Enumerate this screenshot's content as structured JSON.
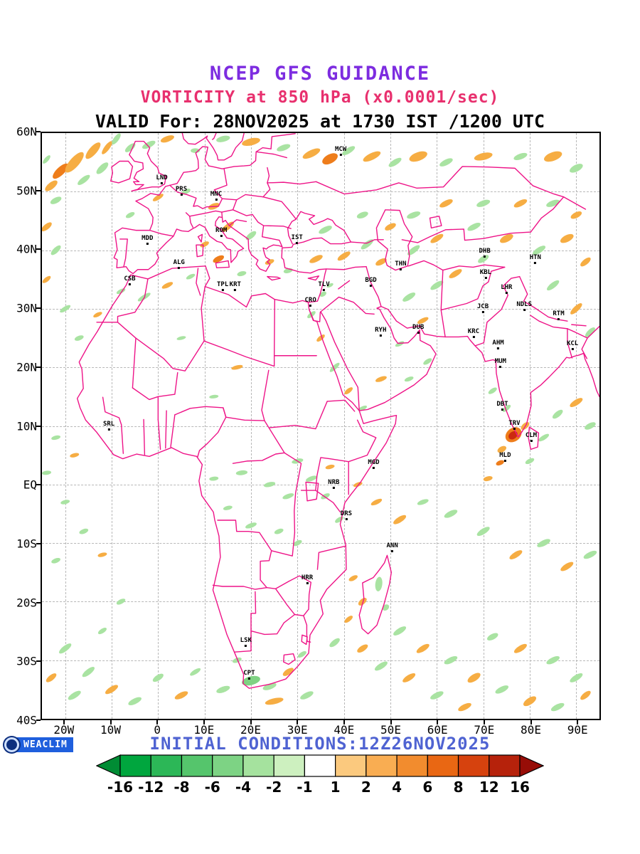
{
  "header": {
    "line1": "NCEP GFS GUIDANCE",
    "line2": "VORTICITY at 850 hPa (x0.0001/sec)",
    "line3": "VALID For: 28NOV2025 at 1730 IST /1200 UTC"
  },
  "footer": {
    "initial_conditions": "INITIAL CONDITIONS:12Z26NOV2025",
    "logo_text": "WEACLIM"
  },
  "axes": {
    "lat_ticks": [
      {
        "label": "60N",
        "lat": 60
      },
      {
        "label": "50N",
        "lat": 50
      },
      {
        "label": "40N",
        "lat": 40
      },
      {
        "label": "30N",
        "lat": 30
      },
      {
        "label": "20N",
        "lat": 20
      },
      {
        "label": "10N",
        "lat": 10
      },
      {
        "label": "EQ",
        "lat": 0
      },
      {
        "label": "10S",
        "lat": -10
      },
      {
        "label": "20S",
        "lat": -20
      },
      {
        "label": "30S",
        "lat": -30
      },
      {
        "label": "40S",
        "lat": -40
      }
    ],
    "lon_ticks": [
      {
        "label": "20W",
        "lon": -20
      },
      {
        "label": "10W",
        "lon": -10
      },
      {
        "label": "0",
        "lon": 0
      },
      {
        "label": "10E",
        "lon": 10
      },
      {
        "label": "20E",
        "lon": 20
      },
      {
        "label": "30E",
        "lon": 30
      },
      {
        "label": "40E",
        "lon": 40
      },
      {
        "label": "50E",
        "lon": 50
      },
      {
        "label": "60E",
        "lon": 60
      },
      {
        "label": "70E",
        "lon": 70
      },
      {
        "label": "80E",
        "lon": 80
      },
      {
        "label": "90E",
        "lon": 90
      }
    ]
  },
  "stations": [
    {
      "id": "MCW",
      "lon": 39.3,
      "lat": 56.1
    },
    {
      "id": "LND",
      "lon": 0.8,
      "lat": 51.3
    },
    {
      "id": "PRS",
      "lon": 5.0,
      "lat": 49.3
    },
    {
      "id": "MNC",
      "lon": 12.5,
      "lat": 48.4
    },
    {
      "id": "ROM",
      "lon": 13.6,
      "lat": 42.2
    },
    {
      "id": "IST",
      "lon": 29.9,
      "lat": 41.0
    },
    {
      "id": "MDD",
      "lon": -2.3,
      "lat": 40.9
    },
    {
      "id": "DHB",
      "lon": 70.3,
      "lat": 38.7
    },
    {
      "id": "HTN",
      "lon": 81.2,
      "lat": 37.6
    },
    {
      "id": "THN",
      "lon": 52.2,
      "lat": 36.5
    },
    {
      "id": "ALG",
      "lon": 4.5,
      "lat": 36.8
    },
    {
      "id": "KBL",
      "lon": 70.5,
      "lat": 35.1
    },
    {
      "id": "CSB",
      "lon": -6.1,
      "lat": 34.0
    },
    {
      "id": "BGD",
      "lon": 45.8,
      "lat": 33.8
    },
    {
      "id": "TPL",
      "lon": 13.9,
      "lat": 33.0
    },
    {
      "id": "KRT",
      "lon": 16.6,
      "lat": 33.0
    },
    {
      "id": "TLV",
      "lon": 35.7,
      "lat": 33.0
    },
    {
      "id": "LHR",
      "lon": 75.0,
      "lat": 32.6
    },
    {
      "id": "CRO",
      "lon": 32.8,
      "lat": 30.4
    },
    {
      "id": "NDLS",
      "lon": 78.8,
      "lat": 29.6
    },
    {
      "id": "JCB",
      "lon": 69.9,
      "lat": 29.2
    },
    {
      "id": "RTM",
      "lon": 86.2,
      "lat": 28.1
    },
    {
      "id": "KRC",
      "lon": 67.9,
      "lat": 25.0
    },
    {
      "id": "RYH",
      "lon": 47.9,
      "lat": 25.3
    },
    {
      "id": "DUB",
      "lon": 56.0,
      "lat": 25.7
    },
    {
      "id": "AHM",
      "lon": 73.2,
      "lat": 23.1
    },
    {
      "id": "KCL",
      "lon": 89.2,
      "lat": 23.0
    },
    {
      "id": "MUM",
      "lon": 73.7,
      "lat": 19.9
    },
    {
      "id": "DBT",
      "lon": 74.1,
      "lat": 12.6
    },
    {
      "id": "TRV",
      "lon": 76.7,
      "lat": 9.3
    },
    {
      "id": "CLM",
      "lon": 80.3,
      "lat": 7.3
    },
    {
      "id": "SRL",
      "lon": -10.6,
      "lat": 9.2
    },
    {
      "id": "MLD",
      "lon": 74.7,
      "lat": 3.9
    },
    {
      "id": "MGD",
      "lon": 46.4,
      "lat": 2.7
    },
    {
      "id": "NRB",
      "lon": 37.8,
      "lat": -0.8
    },
    {
      "id": "DRS",
      "lon": 40.5,
      "lat": -6.1
    },
    {
      "id": "ANN",
      "lon": 50.4,
      "lat": -11.6
    },
    {
      "id": "HRR",
      "lon": 32.1,
      "lat": -17.0
    },
    {
      "id": "LSK",
      "lon": 18.9,
      "lat": -27.7
    },
    {
      "id": "CPT",
      "lon": 19.6,
      "lat": -33.3
    }
  ],
  "colorbar": {
    "labels": [
      "-16",
      "-12",
      "-8",
      "-6",
      "-4",
      "-2",
      "-1",
      "1",
      "2",
      "4",
      "6",
      "8",
      "12",
      "16"
    ],
    "segment_colors": [
      "#00a63e",
      "#2cb757",
      "#55c56c",
      "#7dd384",
      "#a5e29e",
      "#cdf0bf",
      "#ffffff",
      "#fbc97e",
      "#f9ad52",
      "#f28c2e",
      "#e96713",
      "#d6420e",
      "#b6220b"
    ],
    "arrow_left_color": "#008c34",
    "arrow_right_color": "#970d07"
  },
  "colors": {
    "title1": "#7d2ce0",
    "title2": "#e8306e",
    "initial_text": "#4f63d2",
    "coastline": "#ee1488",
    "shade_neg_light": "#a9e3a2",
    "shade_neg_mid": "#7fd283",
    "shade_pos_light": "#f6ad43",
    "shade_pos_mid": "#ee7d1b",
    "shade_pos_strong": "#cc2b0f"
  },
  "chart_data": {
    "type": "heatmap",
    "title": "NCEP GFS GUIDANCE",
    "variable": "VORTICITY at 850 hPa (x0.0001/sec)",
    "valid": "28NOV2025 at 1730 IST /1200 UTC",
    "initial_conditions": "12Z26NOV2025",
    "lon_range": [
      "20W",
      "90E"
    ],
    "lat_range": [
      "40S",
      "60N"
    ],
    "colorbar_levels": [
      -16,
      -12,
      -8,
      -6,
      -4,
      -2,
      -1,
      1,
      2,
      4,
      6,
      8,
      12,
      16
    ],
    "legend_position": "bottom",
    "grid": "dashed 10-degree lat/lon"
  }
}
